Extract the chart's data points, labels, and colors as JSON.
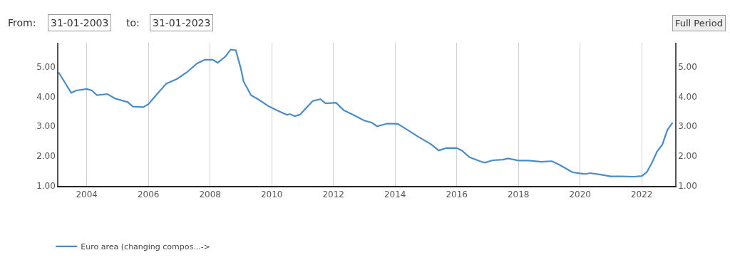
{
  "chart_data": {
    "type": "line",
    "annotations": [
      "From:",
      "31-01-2003",
      "to:",
      "31-01-2023",
      "Full Period"
    ],
    "x": [
      "2003-02",
      "2003-04",
      "2003-07",
      "2003-09",
      "2004-01",
      "2004-03",
      "2004-05",
      "2004-09",
      "2004-12",
      "2005-05",
      "2005-07",
      "2005-11",
      "2006-01",
      "2006-04",
      "2006-08",
      "2006-12",
      "2007-04",
      "2007-08",
      "2007-11",
      "2008-02",
      "2008-04",
      "2008-07",
      "2008-09",
      "2008-11",
      "2009-01",
      "2009-02",
      "2009-05",
      "2009-08",
      "2009-12",
      "2010-03",
      "2010-07",
      "2010-08",
      "2010-10",
      "2010-12",
      "2011-03",
      "2011-05",
      "2011-08",
      "2011-10",
      "2012-02",
      "2012-05",
      "2012-09",
      "2013-01",
      "2013-04",
      "2013-06",
      "2013-10",
      "2014-02",
      "2014-04",
      "2014-10",
      "2015-03",
      "2015-06",
      "2015-09",
      "2016-01",
      "2016-03",
      "2016-06",
      "2016-10",
      "2016-12",
      "2017-03",
      "2017-07",
      "2017-09",
      "2018-01",
      "2018-05",
      "2018-10",
      "2019-02",
      "2019-05",
      "2019-10",
      "2020-01",
      "2020-03",
      "2020-05",
      "2020-09",
      "2021-01",
      "2021-05",
      "2021-10",
      "2022-01",
      "2022-03",
      "2022-05",
      "2022-07",
      "2022-09",
      "2022-11",
      "2023-01"
    ],
    "series": [
      {
        "name": "Euro area (changing compos...->",
        "color": "#4a8cc6",
        "values": [
          4.81,
          4.54,
          4.12,
          4.2,
          4.25,
          4.2,
          4.04,
          4.08,
          3.93,
          3.81,
          3.66,
          3.64,
          3.74,
          4.04,
          4.43,
          4.58,
          4.81,
          5.11,
          5.23,
          5.23,
          5.13,
          5.34,
          5.57,
          5.55,
          4.92,
          4.5,
          4.04,
          3.89,
          3.66,
          3.54,
          3.38,
          3.41,
          3.34,
          3.39,
          3.66,
          3.85,
          3.91,
          3.77,
          3.79,
          3.54,
          3.37,
          3.19,
          3.12,
          3.0,
          3.09,
          3.08,
          2.98,
          2.65,
          2.4,
          2.19,
          2.27,
          2.27,
          2.19,
          1.96,
          1.83,
          1.78,
          1.86,
          1.88,
          1.92,
          1.85,
          1.85,
          1.81,
          1.83,
          1.71,
          1.46,
          1.42,
          1.4,
          1.43,
          1.38,
          1.32,
          1.32,
          1.31,
          1.33,
          1.46,
          1.77,
          2.15,
          2.38,
          2.88,
          3.12
        ]
      }
    ],
    "xlim": [
      "2003-01-31",
      "2023-01-31"
    ],
    "xticks": [
      {
        "value": "2004-01-01",
        "label": "2004"
      },
      {
        "value": "2006-01-01",
        "label": "2006"
      },
      {
        "value": "2008-01-01",
        "label": "2008"
      },
      {
        "value": "2010-01-01",
        "label": "2010"
      },
      {
        "value": "2012-01-01",
        "label": "2012"
      },
      {
        "value": "2014-01-01",
        "label": "2014"
      },
      {
        "value": "2016-01-01",
        "label": "2016"
      },
      {
        "value": "2018-01-01",
        "label": "2018"
      },
      {
        "value": "2020-01-01",
        "label": "2020"
      },
      {
        "value": "2022-01-01",
        "label": "2022"
      }
    ],
    "ylim": [
      1,
      5.8
    ],
    "yticks": [
      {
        "value": 1,
        "label": "1.00"
      },
      {
        "value": 2,
        "label": "2.00"
      },
      {
        "value": 3,
        "label": "3.00"
      },
      {
        "value": 4,
        "label": "4.00"
      },
      {
        "value": 5,
        "label": "5.00"
      }
    ],
    "y2lim": [
      1,
      5.8
    ],
    "y2ticks": [
      {
        "value": 1,
        "label": "1.00"
      },
      {
        "value": 2,
        "label": "2.00"
      },
      {
        "value": 3,
        "label": "3.00"
      },
      {
        "value": 4,
        "label": "4.00"
      },
      {
        "value": 5,
        "label": "5.00"
      }
    ],
    "grid": "x",
    "legend": "bottom left",
    "line_style": "solid",
    "marker": "none"
  }
}
